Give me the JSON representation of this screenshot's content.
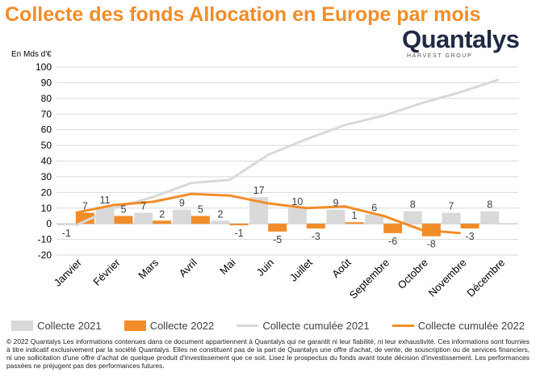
{
  "title": "Collecte des fonds Allocation en Europe par mois",
  "logo": {
    "name": "Quantalys",
    "tagline": "HARVEST GROUP"
  },
  "colors": {
    "title": "#F28C28",
    "collecte_2021": "#D9D9D9",
    "collecte_2022": "#F28C28",
    "cumul_2021": "#D9D9D9",
    "cumul_2022": "#F28C28"
  },
  "chart_data": {
    "type": "bar",
    "title": "Collecte des fonds Allocation en Europe par mois",
    "ylabel": "En Mds d'€",
    "ylim": [
      -20,
      100
    ],
    "yticks": [
      -20,
      -10,
      0,
      10,
      20,
      30,
      40,
      50,
      60,
      70,
      80,
      90,
      100
    ],
    "grid": true,
    "legend_position": "bottom",
    "categories": [
      "Janvier",
      "Février",
      "Mars",
      "Avril",
      "Mai",
      "Juin",
      "Juillet",
      "Août",
      "Septembre",
      "Octobre",
      "Novembre",
      "Décembre"
    ],
    "series": [
      {
        "name": "Collecte 2021",
        "type": "bar",
        "values": [
          -1,
          11,
          7,
          9,
          2,
          17,
          10,
          9,
          6,
          8,
          7,
          8
        ],
        "labels": [
          "-1",
          "11",
          "7",
          "9",
          "2",
          "17",
          "10",
          "9",
          "6",
          "8",
          "7",
          "8"
        ]
      },
      {
        "name": "Collecte 2022",
        "type": "bar",
        "values": [
          7,
          5,
          2,
          5,
          -1,
          -5,
          -3,
          1,
          -6,
          -8,
          -3,
          null
        ],
        "labels": [
          "7",
          "5",
          "2",
          "5",
          "-1",
          "-5",
          "-3",
          "1",
          "-6",
          "-8",
          "-3",
          ""
        ]
      },
      {
        "name": "Collecte cumulée 2021",
        "type": "line",
        "values": [
          -1,
          10,
          17,
          26,
          28,
          44,
          54,
          63,
          69,
          77,
          84,
          92
        ]
      },
      {
        "name": "Collecte cumulée 2022",
        "type": "line",
        "values": [
          7,
          12,
          14,
          19,
          18,
          13,
          10,
          11,
          5,
          -4,
          -6,
          null
        ]
      }
    ]
  },
  "footer": "© 2022 Quantalys Les informations contenues dans ce document appartiennent à Quantalys qui ne garantit ni leur fiabilité, ni leur exhaustivité. Ces informations sont fournies à titre indicatif exclusivement par la société Quantalys. Elles ne constituent pas de la part de Quantalys une offre d'achat, de vente, de souscription ou de services financiers, ni une sollicitation d'une offre d'achat de quelque produit d'investissement que ce soit. Lisez le prospectus du fonds avant toute décision d'investissement. Les performances passées ne préjugent pas des performances futures."
}
